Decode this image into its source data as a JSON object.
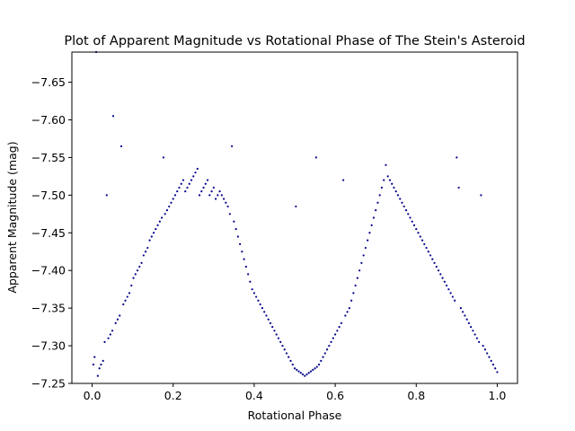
{
  "chart_data": {
    "type": "scatter",
    "title": "Plot of Apparent Magnitude vs Rotational Phase of The Stein's Asteroid",
    "xlabel": "Rotational Phase",
    "ylabel": "Apparent Magnitude (mag)",
    "xlim": [
      -0.05,
      1.05
    ],
    "ylim": [
      -7.25,
      -7.69
    ],
    "y_inverted": true,
    "xticks": [
      0.0,
      0.2,
      0.4,
      0.6,
      0.8,
      1.0
    ],
    "xtick_labels": [
      "0.0",
      "0.2",
      "0.4",
      "0.6",
      "0.8",
      "1.0"
    ],
    "yticks": [
      -7.65,
      -7.6,
      -7.55,
      -7.5,
      -7.45,
      -7.4,
      -7.35,
      -7.3,
      -7.25
    ],
    "ytick_labels": [
      "−7.65",
      "−7.60",
      "−7.55",
      "−7.50",
      "−7.45",
      "−7.40",
      "−7.35",
      "−7.30",
      "−7.25"
    ],
    "grid": false,
    "marker_color": "#00008b",
    "points": [
      [
        0.003,
        -7.275
      ],
      [
        0.006,
        -7.285
      ],
      [
        0.01,
        -7.69
      ],
      [
        0.014,
        -7.26
      ],
      [
        0.018,
        -7.27
      ],
      [
        0.022,
        -7.275
      ],
      [
        0.027,
        -7.28
      ],
      [
        0.031,
        -7.305
      ],
      [
        0.036,
        -7.5
      ],
      [
        0.04,
        -7.31
      ],
      [
        0.045,
        -7.315
      ],
      [
        0.05,
        -7.32
      ],
      [
        0.052,
        -7.605
      ],
      [
        0.058,
        -7.33
      ],
      [
        0.063,
        -7.335
      ],
      [
        0.068,
        -7.34
      ],
      [
        0.072,
        -7.565
      ],
      [
        0.077,
        -7.355
      ],
      [
        0.082,
        -7.36
      ],
      [
        0.087,
        -7.365
      ],
      [
        0.092,
        -7.37
      ],
      [
        0.097,
        -7.38
      ],
      [
        0.102,
        -7.39
      ],
      [
        0.107,
        -7.395
      ],
      [
        0.112,
        -7.4
      ],
      [
        0.117,
        -7.405
      ],
      [
        0.122,
        -7.41
      ],
      [
        0.127,
        -7.42
      ],
      [
        0.132,
        -7.425
      ],
      [
        0.137,
        -7.43
      ],
      [
        0.142,
        -7.44
      ],
      [
        0.147,
        -7.445
      ],
      [
        0.152,
        -7.45
      ],
      [
        0.157,
        -7.455
      ],
      [
        0.162,
        -7.46
      ],
      [
        0.167,
        -7.465
      ],
      [
        0.172,
        -7.47
      ],
      [
        0.176,
        -7.55
      ],
      [
        0.18,
        -7.475
      ],
      [
        0.185,
        -7.48
      ],
      [
        0.19,
        -7.485
      ],
      [
        0.195,
        -7.49
      ],
      [
        0.2,
        -7.495
      ],
      [
        0.205,
        -7.5
      ],
      [
        0.21,
        -7.505
      ],
      [
        0.215,
        -7.51
      ],
      [
        0.22,
        -7.515
      ],
      [
        0.225,
        -7.52
      ],
      [
        0.23,
        -7.505
      ],
      [
        0.235,
        -7.51
      ],
      [
        0.24,
        -7.515
      ],
      [
        0.245,
        -7.52
      ],
      [
        0.25,
        -7.525
      ],
      [
        0.255,
        -7.53
      ],
      [
        0.26,
        -7.535
      ],
      [
        0.265,
        -7.5
      ],
      [
        0.27,
        -7.505
      ],
      [
        0.275,
        -7.51
      ],
      [
        0.28,
        -7.515
      ],
      [
        0.285,
        -7.52
      ],
      [
        0.29,
        -7.5
      ],
      [
        0.295,
        -7.505
      ],
      [
        0.3,
        -7.51
      ],
      [
        0.305,
        -7.495
      ],
      [
        0.31,
        -7.5
      ],
      [
        0.315,
        -7.505
      ],
      [
        0.32,
        -7.5
      ],
      [
        0.325,
        -7.495
      ],
      [
        0.33,
        -7.49
      ],
      [
        0.335,
        -7.485
      ],
      [
        0.34,
        -7.475
      ],
      [
        0.345,
        -7.565
      ],
      [
        0.35,
        -7.465
      ],
      [
        0.355,
        -7.455
      ],
      [
        0.36,
        -7.445
      ],
      [
        0.365,
        -7.435
      ],
      [
        0.37,
        -7.425
      ],
      [
        0.375,
        -7.415
      ],
      [
        0.38,
        -7.405
      ],
      [
        0.385,
        -7.395
      ],
      [
        0.39,
        -7.385
      ],
      [
        0.395,
        -7.375
      ],
      [
        0.4,
        -7.37
      ],
      [
        0.405,
        -7.365
      ],
      [
        0.41,
        -7.36
      ],
      [
        0.415,
        -7.355
      ],
      [
        0.42,
        -7.35
      ],
      [
        0.425,
        -7.345
      ],
      [
        0.43,
        -7.34
      ],
      [
        0.435,
        -7.335
      ],
      [
        0.44,
        -7.33
      ],
      [
        0.445,
        -7.325
      ],
      [
        0.45,
        -7.32
      ],
      [
        0.455,
        -7.315
      ],
      [
        0.46,
        -7.31
      ],
      [
        0.465,
        -7.305
      ],
      [
        0.47,
        -7.3
      ],
      [
        0.475,
        -7.295
      ],
      [
        0.48,
        -7.29
      ],
      [
        0.485,
        -7.285
      ],
      [
        0.49,
        -7.28
      ],
      [
        0.495,
        -7.275
      ],
      [
        0.5,
        -7.27
      ],
      [
        0.503,
        -7.485
      ],
      [
        0.505,
        -7.268
      ],
      [
        0.51,
        -7.266
      ],
      [
        0.515,
        -7.264
      ],
      [
        0.52,
        -7.262
      ],
      [
        0.525,
        -7.26
      ],
      [
        0.53,
        -7.262
      ],
      [
        0.535,
        -7.264
      ],
      [
        0.54,
        -7.266
      ],
      [
        0.545,
        -7.268
      ],
      [
        0.55,
        -7.27
      ],
      [
        0.553,
        -7.55
      ],
      [
        0.555,
        -7.272
      ],
      [
        0.56,
        -7.275
      ],
      [
        0.565,
        -7.28
      ],
      [
        0.57,
        -7.285
      ],
      [
        0.575,
        -7.29
      ],
      [
        0.58,
        -7.295
      ],
      [
        0.585,
        -7.3
      ],
      [
        0.59,
        -7.305
      ],
      [
        0.595,
        -7.31
      ],
      [
        0.6,
        -7.315
      ],
      [
        0.605,
        -7.32
      ],
      [
        0.61,
        -7.325
      ],
      [
        0.615,
        -7.33
      ],
      [
        0.62,
        -7.52
      ],
      [
        0.625,
        -7.34
      ],
      [
        0.63,
        -7.345
      ],
      [
        0.635,
        -7.35
      ],
      [
        0.64,
        -7.36
      ],
      [
        0.645,
        -7.37
      ],
      [
        0.65,
        -7.38
      ],
      [
        0.655,
        -7.39
      ],
      [
        0.66,
        -7.4
      ],
      [
        0.665,
        -7.41
      ],
      [
        0.67,
        -7.42
      ],
      [
        0.675,
        -7.43
      ],
      [
        0.68,
        -7.44
      ],
      [
        0.685,
        -7.45
      ],
      [
        0.69,
        -7.46
      ],
      [
        0.695,
        -7.47
      ],
      [
        0.7,
        -7.48
      ],
      [
        0.705,
        -7.49
      ],
      [
        0.71,
        -7.5
      ],
      [
        0.715,
        -7.51
      ],
      [
        0.72,
        -7.52
      ],
      [
        0.725,
        -7.54
      ],
      [
        0.73,
        -7.525
      ],
      [
        0.735,
        -7.52
      ],
      [
        0.74,
        -7.515
      ],
      [
        0.745,
        -7.51
      ],
      [
        0.75,
        -7.505
      ],
      [
        0.755,
        -7.5
      ],
      [
        0.76,
        -7.495
      ],
      [
        0.765,
        -7.49
      ],
      [
        0.77,
        -7.485
      ],
      [
        0.775,
        -7.48
      ],
      [
        0.78,
        -7.475
      ],
      [
        0.785,
        -7.47
      ],
      [
        0.79,
        -7.465
      ],
      [
        0.795,
        -7.46
      ],
      [
        0.8,
        -7.455
      ],
      [
        0.805,
        -7.45
      ],
      [
        0.81,
        -7.445
      ],
      [
        0.815,
        -7.44
      ],
      [
        0.82,
        -7.435
      ],
      [
        0.825,
        -7.43
      ],
      [
        0.83,
        -7.425
      ],
      [
        0.835,
        -7.42
      ],
      [
        0.84,
        -7.415
      ],
      [
        0.845,
        -7.41
      ],
      [
        0.85,
        -7.405
      ],
      [
        0.855,
        -7.4
      ],
      [
        0.86,
        -7.395
      ],
      [
        0.865,
        -7.39
      ],
      [
        0.87,
        -7.385
      ],
      [
        0.875,
        -7.38
      ],
      [
        0.88,
        -7.375
      ],
      [
        0.885,
        -7.37
      ],
      [
        0.89,
        -7.365
      ],
      [
        0.895,
        -7.36
      ],
      [
        0.9,
        -7.55
      ],
      [
        0.905,
        -7.51
      ],
      [
        0.91,
        -7.35
      ],
      [
        0.915,
        -7.345
      ],
      [
        0.92,
        -7.34
      ],
      [
        0.925,
        -7.335
      ],
      [
        0.93,
        -7.33
      ],
      [
        0.935,
        -7.325
      ],
      [
        0.94,
        -7.32
      ],
      [
        0.945,
        -7.315
      ],
      [
        0.95,
        -7.31
      ],
      [
        0.955,
        -7.305
      ],
      [
        0.96,
        -7.5
      ],
      [
        0.965,
        -7.3
      ],
      [
        0.97,
        -7.295
      ],
      [
        0.975,
        -7.29
      ],
      [
        0.98,
        -7.285
      ],
      [
        0.985,
        -7.28
      ],
      [
        0.99,
        -7.275
      ],
      [
        0.995,
        -7.27
      ],
      [
        1.0,
        -7.265
      ]
    ]
  }
}
